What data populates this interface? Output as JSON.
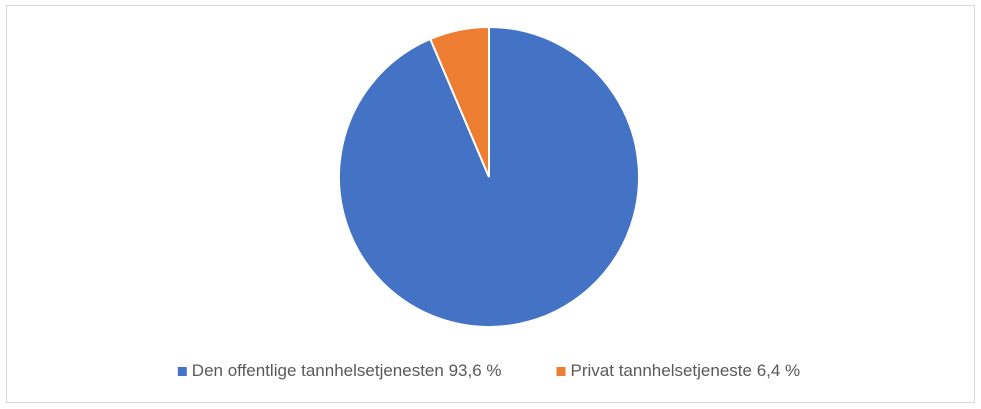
{
  "chart_data": {
    "type": "pie",
    "categories": [
      "Den offentlige tannhelsetjenesten",
      "Privat tannhelsetjeneste"
    ],
    "values": [
      93.6,
      6.4
    ],
    "value_labels": [
      "93,6 %",
      "6,4 %"
    ],
    "colors": [
      "#4472c4",
      "#ed7d31"
    ],
    "legend": "bottom"
  }
}
